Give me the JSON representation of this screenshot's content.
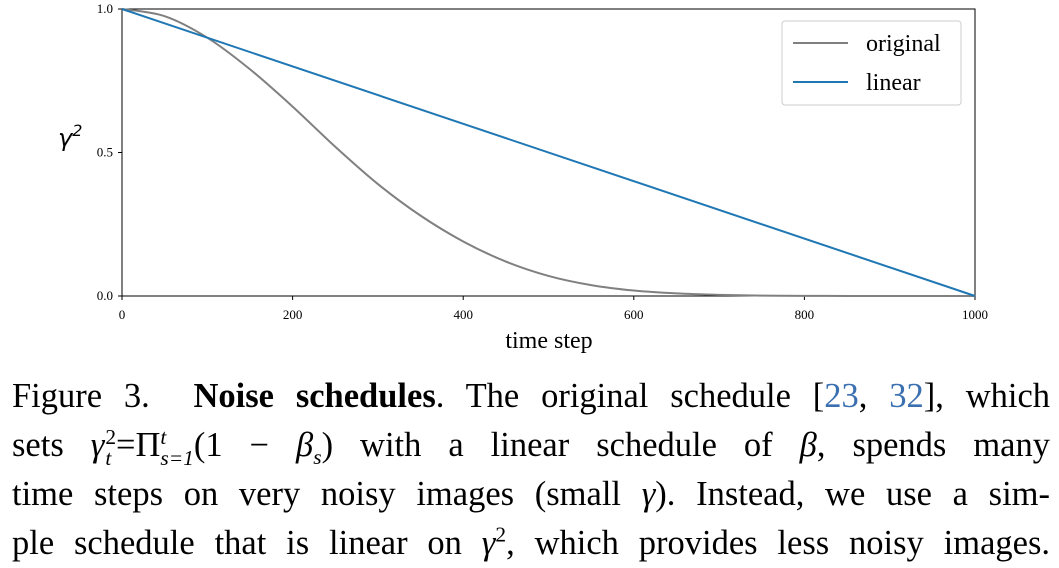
{
  "chart_data": {
    "type": "line",
    "xlabel": "time step",
    "ylabel_base": "γ",
    "ylabel_exp": "2",
    "xlim": [
      0,
      1000
    ],
    "ylim": [
      0,
      1.0
    ],
    "xticks": [
      0,
      200,
      400,
      600,
      800,
      1000
    ],
    "xtick_labels": [
      "0",
      "200",
      "400",
      "600",
      "800",
      "1000"
    ],
    "yticks": [
      0.0,
      0.5,
      1.0
    ],
    "ytick_labels": [
      "0.0",
      "0.5",
      "1.0"
    ],
    "grid": false,
    "legend_position": "top-right",
    "series": [
      {
        "name": "original",
        "color": "#808080",
        "x": [
          0,
          50,
          100,
          150,
          200,
          250,
          300,
          350,
          400,
          450,
          500,
          550,
          600,
          650,
          700,
          750,
          800,
          850,
          900,
          950,
          1000
        ],
        "y": [
          1.0,
          0.975,
          0.9,
          0.79,
          0.66,
          0.52,
          0.39,
          0.28,
          0.19,
          0.12,
          0.07,
          0.038,
          0.019,
          0.009,
          0.004,
          0.0015,
          0.0005,
          0.0002,
          0.0,
          0.0,
          0.0
        ]
      },
      {
        "name": "linear",
        "color": "#1f77b4",
        "x": [
          0,
          1000
        ],
        "y": [
          1.0,
          0.0
        ]
      }
    ]
  },
  "caption": {
    "fig_label": "Figure 3.",
    "bold_title": "Noise schedules",
    "l1_a": ". The original schedule [",
    "ref1": "23",
    "l1_comma": ", ",
    "ref2": "32",
    "l1_b": "], which",
    "l2_a": "sets ",
    "l2_gamma": "γ",
    "l2_sup": "2",
    "l2_sub": "t",
    "l2_eq": "=Π",
    "l2_pi_sup": "t",
    "l2_pi_sub": "s=1",
    "l2_paren": "(1 − ",
    "l2_beta": "β",
    "l2_beta_sub": "s",
    "l2_close": ")",
    "l2_b": " with a linear schedule of ",
    "l2_beta2": "β",
    "l2_c": ", spends many",
    "l3_a": "time steps on very noisy images (small ",
    "l3_gamma": "γ",
    "l3_b": "). Instead, we use a sim-",
    "l4_a": "ple schedule that is linear on ",
    "l4_gamma": "γ",
    "l4_sup": "2",
    "l4_b": ", which provides less noisy images."
  }
}
